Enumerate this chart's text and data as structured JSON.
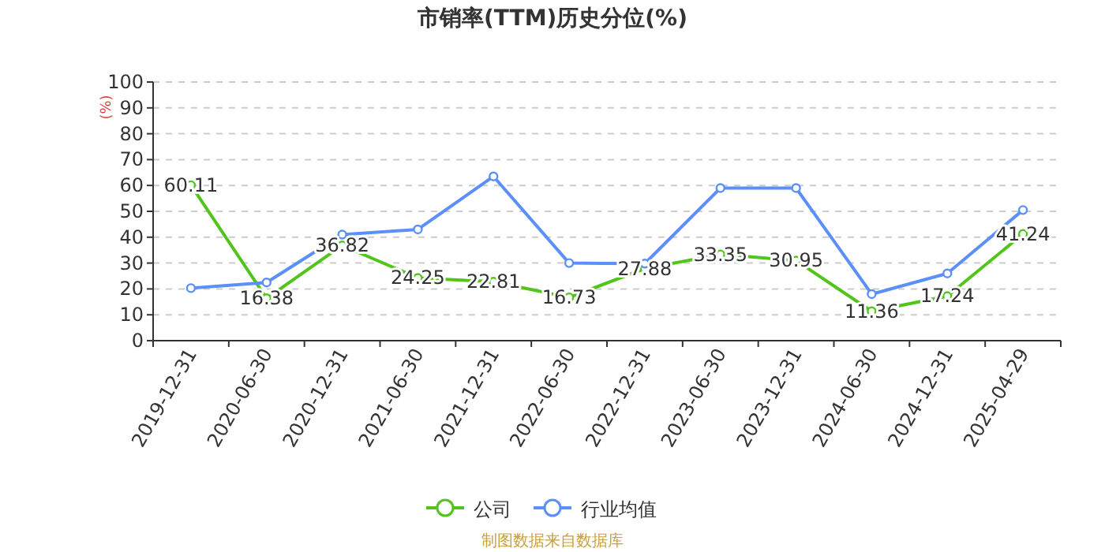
{
  "chart_data": {
    "type": "line",
    "title": "市销率(TTM)历史分位(%)",
    "ylabel": "(%)",
    "categories": [
      "2019-12-31",
      "2020-06-30",
      "2020-12-31",
      "2021-06-30",
      "2021-12-31",
      "2022-06-30",
      "2022-12-31",
      "2023-06-30",
      "2023-12-31",
      "2024-06-30",
      "2024-12-31",
      "2025-04-29"
    ],
    "series": [
      {
        "name": "公司",
        "color": "#52c41a",
        "values": [
          60.11,
          16.38,
          36.82,
          24.25,
          22.81,
          16.73,
          27.88,
          33.35,
          30.95,
          11.36,
          17.24,
          41.24
        ],
        "value_labels": [
          "60.11",
          "16.38",
          "36.82",
          "24.25",
          "22.81",
          "16.73",
          "27.88",
          "33.35",
          "30.95",
          "11.36",
          "17.24",
          "41.24"
        ]
      },
      {
        "name": "行业均值",
        "color": "#5b8ff9",
        "values": [
          20.3,
          22.5,
          41,
          43,
          63.5,
          30,
          29.8,
          59,
          59,
          18,
          26,
          50.5
        ]
      }
    ],
    "ylim": [
      0,
      100
    ],
    "yticks": [
      0,
      10,
      20,
      30,
      40,
      50,
      60,
      70,
      80,
      90,
      100
    ],
    "grid": "y",
    "legend": "bottom",
    "marker": "circle",
    "line_style": "solid",
    "annotations": [
      "制图数据来自数据库"
    ]
  }
}
